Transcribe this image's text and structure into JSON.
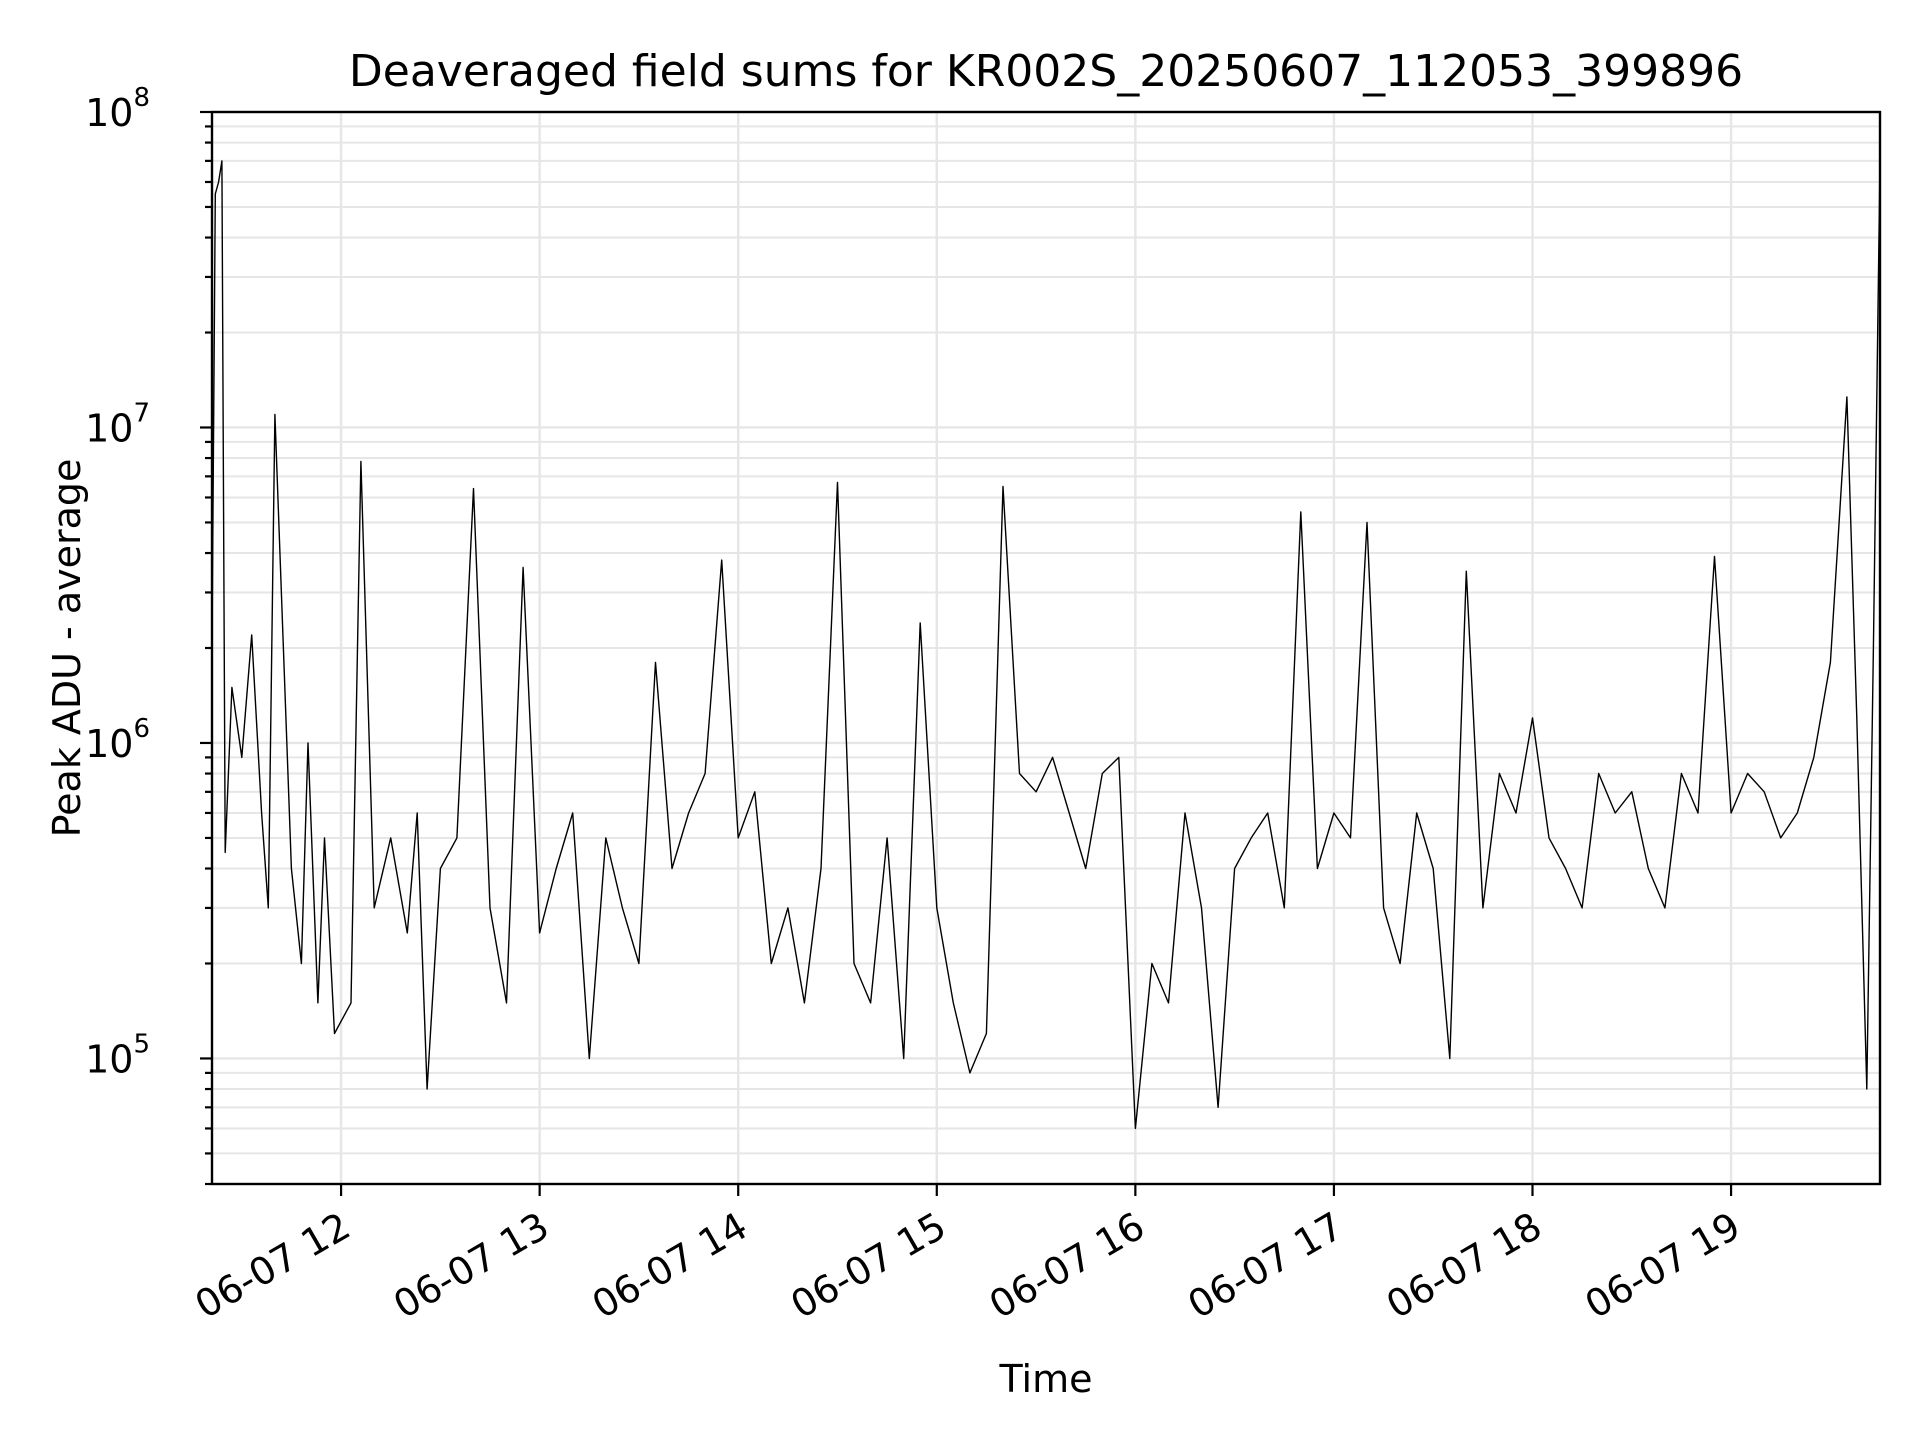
{
  "chart_data": {
    "type": "line",
    "title": "Deaveraged field sums for KR002S_20250607_112053_399896",
    "xlabel": "Time",
    "ylabel": "Peak ADU - average",
    "yscale": "log",
    "grid": true,
    "x_range": [
      "2025-06-07 11:21",
      "2025-06-07 19:45"
    ],
    "ylim": [
      40000,
      100000000
    ],
    "x_ticks": [
      {
        "value": "2025-06-07 12:00",
        "label": "06-07 12"
      },
      {
        "value": "2025-06-07 13:00",
        "label": "06-07 13"
      },
      {
        "value": "2025-06-07 14:00",
        "label": "06-07 14"
      },
      {
        "value": "2025-06-07 15:00",
        "label": "06-07 15"
      },
      {
        "value": "2025-06-07 16:00",
        "label": "06-07 16"
      },
      {
        "value": "2025-06-07 17:00",
        "label": "06-07 17"
      },
      {
        "value": "2025-06-07 18:00",
        "label": "06-07 18"
      },
      {
        "value": "2025-06-07 19:00",
        "label": "06-07 19"
      }
    ],
    "y_ticks": [
      {
        "value": 100000,
        "base": "10",
        "exp": "5"
      },
      {
        "value": 1000000,
        "base": "10",
        "exp": "6"
      },
      {
        "value": 10000000,
        "base": "10",
        "exp": "7"
      },
      {
        "value": 100000000,
        "base": "10",
        "exp": "8"
      }
    ],
    "line_color": "#000000",
    "x": [
      "11:21",
      "11:22",
      "11:23",
      "11:24",
      "11:25",
      "11:27",
      "11:30",
      "11:33",
      "11:36",
      "11:38",
      "11:40",
      "11:45",
      "11:48",
      "11:50",
      "11:53",
      "11:55",
      "11:58",
      "12:03",
      "12:06",
      "12:10",
      "12:15",
      "12:20",
      "12:23",
      "12:26",
      "12:30",
      "12:35",
      "12:40",
      "12:45",
      "12:50",
      "12:55",
      "13:00",
      "13:05",
      "13:10",
      "13:15",
      "13:20",
      "13:25",
      "13:30",
      "13:35",
      "13:40",
      "13:45",
      "13:50",
      "13:55",
      "14:00",
      "14:05",
      "14:10",
      "14:15",
      "14:20",
      "14:25",
      "14:30",
      "14:35",
      "14:40",
      "14:45",
      "14:50",
      "14:55",
      "15:00",
      "15:05",
      "15:10",
      "15:15",
      "15:20",
      "15:25",
      "15:30",
      "15:35",
      "15:40",
      "15:45",
      "15:50",
      "15:55",
      "16:00",
      "16:05",
      "16:10",
      "16:15",
      "16:20",
      "16:25",
      "16:30",
      "16:35",
      "16:40",
      "16:45",
      "16:50",
      "16:55",
      "17:00",
      "17:05",
      "17:10",
      "17:15",
      "17:20",
      "17:25",
      "17:30",
      "17:35",
      "17:40",
      "17:45",
      "17:50",
      "17:55",
      "18:00",
      "18:05",
      "18:10",
      "18:15",
      "18:20",
      "18:25",
      "18:30",
      "18:35",
      "18:40",
      "18:45",
      "18:50",
      "18:55",
      "19:00",
      "19:05",
      "19:10",
      "19:15",
      "19:20",
      "19:25",
      "19:30",
      "19:35",
      "19:38",
      "19:41",
      "19:43",
      "19:45"
    ],
    "y": [
      2000000,
      55000000,
      60000000,
      70000000,
      450000,
      1500000,
      900000,
      2200000,
      600000,
      300000,
      11000000,
      400000,
      200000,
      1000000,
      150000,
      500000,
      120000,
      150000,
      7800000,
      300000,
      500000,
      250000,
      600000,
      80000,
      400000,
      500000,
      6400000,
      300000,
      150000,
      3600000,
      250000,
      400000,
      600000,
      100000,
      500000,
      300000,
      200000,
      1800000,
      400000,
      600000,
      800000,
      3800000,
      500000,
      700000,
      200000,
      300000,
      150000,
      400000,
      6700000,
      200000,
      150000,
      500000,
      100000,
      2400000,
      300000,
      150000,
      90000,
      120000,
      6500000,
      800000,
      700000,
      900000,
      600000,
      400000,
      800000,
      900000,
      60000,
      200000,
      150000,
      600000,
      300000,
      70000,
      400000,
      500000,
      600000,
      300000,
      5400000,
      400000,
      600000,
      500000,
      5000000,
      300000,
      200000,
      600000,
      400000,
      100000,
      3500000,
      300000,
      800000,
      600000,
      1200000,
      500000,
      400000,
      300000,
      800000,
      600000,
      700000,
      400000,
      300000,
      800000,
      600000,
      3900000,
      600000,
      800000,
      700000,
      500000,
      600000,
      900000,
      1800000,
      12500000,
      1200000,
      80000,
      2000000,
      70000000
    ]
  }
}
